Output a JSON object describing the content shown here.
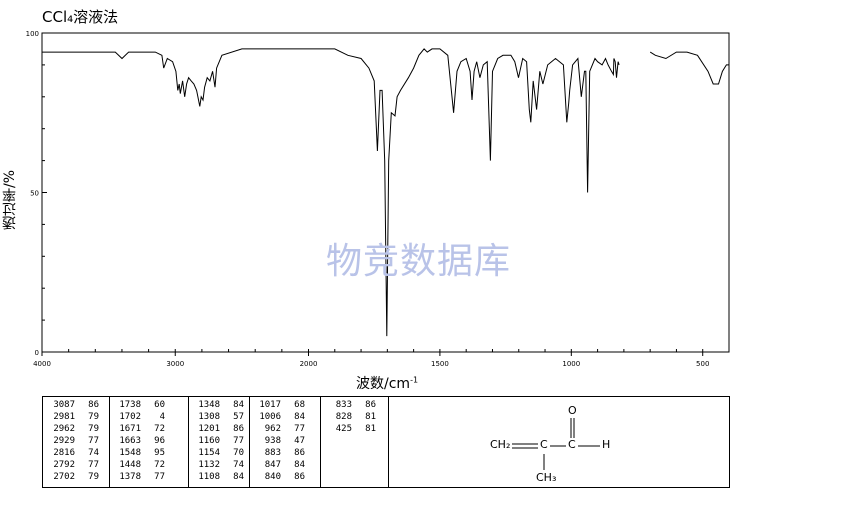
{
  "title": "CCl₄溶液法",
  "watermark": "物竞数据库",
  "chart_data": {
    "type": "line",
    "title": "CCl₄溶液法",
    "xlabel": "波数/cm",
    "xlabel_sup": "-1",
    "ylabel": "透过率/%",
    "xlim": [
      4000,
      400
    ],
    "ylim": [
      0,
      100
    ],
    "x_ticks": [
      4000,
      3000,
      2000,
      1500,
      1000,
      500
    ],
    "y_ticks": [
      0,
      50,
      100
    ],
    "series": [
      {
        "color": "#000000",
        "points": [
          [
            4000,
            94
          ],
          [
            3800,
            94
          ],
          [
            3600,
            94
          ],
          [
            3450,
            94
          ],
          [
            3400,
            92
          ],
          [
            3350,
            94
          ],
          [
            3150,
            94
          ],
          [
            3100,
            93
          ],
          [
            3087,
            89
          ],
          [
            3060,
            92
          ],
          [
            3020,
            91
          ],
          [
            2995,
            88
          ],
          [
            2981,
            82
          ],
          [
            2970,
            84
          ],
          [
            2962,
            81
          ],
          [
            2945,
            85
          ],
          [
            2929,
            80
          ],
          [
            2915,
            84
          ],
          [
            2900,
            86
          ],
          [
            2880,
            85
          ],
          [
            2860,
            84
          ],
          [
            2840,
            82
          ],
          [
            2816,
            77
          ],
          [
            2805,
            80
          ],
          [
            2792,
            79
          ],
          [
            2780,
            83
          ],
          [
            2760,
            86
          ],
          [
            2740,
            85
          ],
          [
            2720,
            88
          ],
          [
            2702,
            83
          ],
          [
            2690,
            89
          ],
          [
            2650,
            93
          ],
          [
            2500,
            95
          ],
          [
            2200,
            95
          ],
          [
            2000,
            95
          ],
          [
            1900,
            95
          ],
          [
            1850,
            93
          ],
          [
            1800,
            92
          ],
          [
            1770,
            89
          ],
          [
            1750,
            85
          ],
          [
            1738,
            63
          ],
          [
            1728,
            82
          ],
          [
            1720,
            82
          ],
          [
            1710,
            60
          ],
          [
            1702,
            5
          ],
          [
            1695,
            60
          ],
          [
            1685,
            75
          ],
          [
            1671,
            74
          ],
          [
            1663,
            80
          ],
          [
            1650,
            82
          ],
          [
            1620,
            86
          ],
          [
            1600,
            89
          ],
          [
            1580,
            93
          ],
          [
            1560,
            95
          ],
          [
            1548,
            94
          ],
          [
            1530,
            95
          ],
          [
            1500,
            95
          ],
          [
            1470,
            93
          ],
          [
            1448,
            75
          ],
          [
            1435,
            88
          ],
          [
            1420,
            91
          ],
          [
            1400,
            92
          ],
          [
            1385,
            88
          ],
          [
            1378,
            79
          ],
          [
            1370,
            88
          ],
          [
            1360,
            91
          ],
          [
            1348,
            86
          ],
          [
            1335,
            90
          ],
          [
            1320,
            91
          ],
          [
            1308,
            60
          ],
          [
            1300,
            88
          ],
          [
            1280,
            92
          ],
          [
            1260,
            93
          ],
          [
            1230,
            93
          ],
          [
            1215,
            91
          ],
          [
            1201,
            86
          ],
          [
            1185,
            92
          ],
          [
            1170,
            91
          ],
          [
            1160,
            76
          ],
          [
            1154,
            72
          ],
          [
            1145,
            85
          ],
          [
            1132,
            76
          ],
          [
            1120,
            88
          ],
          [
            1108,
            84
          ],
          [
            1090,
            90
          ],
          [
            1060,
            92
          ],
          [
            1030,
            90
          ],
          [
            1017,
            72
          ],
          [
            1010,
            78
          ],
          [
            1006,
            82
          ],
          [
            995,
            90
          ],
          [
            975,
            92
          ],
          [
            962,
            80
          ],
          [
            950,
            88
          ],
          [
            945,
            88
          ],
          [
            938,
            50
          ],
          [
            930,
            88
          ],
          [
            910,
            92
          ],
          [
            900,
            91
          ],
          [
            883,
            90
          ],
          [
            870,
            92
          ],
          [
            860,
            90
          ],
          [
            847,
            88
          ],
          [
            840,
            87
          ],
          [
            838,
            92
          ],
          [
            833,
            91
          ],
          [
            828,
            86
          ],
          [
            822,
            91
          ],
          [
            818,
            90
          ],
          [
            700,
            94
          ],
          [
            680,
            93
          ],
          [
            640,
            92
          ],
          [
            600,
            94
          ],
          [
            560,
            94
          ],
          [
            520,
            93
          ],
          [
            480,
            88
          ],
          [
            460,
            84
          ],
          [
            440,
            84
          ],
          [
            425,
            88
          ],
          [
            410,
            90
          ],
          [
            400,
            90
          ]
        ]
      }
    ]
  },
  "peak_table": [
    [
      [
        "3087",
        "86"
      ],
      [
        "2981",
        "79"
      ],
      [
        "2962",
        "79"
      ],
      [
        "2929",
        "77"
      ],
      [
        "2816",
        "74"
      ],
      [
        "2792",
        "77"
      ],
      [
        "2702",
        "79"
      ]
    ],
    [
      [
        "1738",
        "60"
      ],
      [
        "1702",
        "4"
      ],
      [
        "1671",
        "72"
      ],
      [
        "1663",
        "96"
      ],
      [
        "1548",
        "95"
      ],
      [
        "1448",
        "72"
      ],
      [
        "1378",
        "77"
      ]
    ],
    [
      [
        "1348",
        "84"
      ],
      [
        "1308",
        "57"
      ],
      [
        "1201",
        "86"
      ],
      [
        "1160",
        "77"
      ],
      [
        "1154",
        "70"
      ],
      [
        "1132",
        "74"
      ],
      [
        "1108",
        "84"
      ]
    ],
    [
      [
        "1017",
        "68"
      ],
      [
        "1006",
        "84"
      ],
      [
        "962",
        "77"
      ],
      [
        "938",
        "47"
      ],
      [
        "883",
        "86"
      ],
      [
        "847",
        "84"
      ],
      [
        "840",
        "86"
      ]
    ],
    [
      [
        "833",
        "86"
      ],
      [
        "828",
        "81"
      ],
      [
        "425",
        "81"
      ]
    ]
  ],
  "structure": {
    "oxygen": "O",
    "left_group": "CH₂",
    "center_carbon": "C",
    "carbonyl_carbon": "C",
    "hydrogen": "H",
    "methyl": "CH₃"
  }
}
